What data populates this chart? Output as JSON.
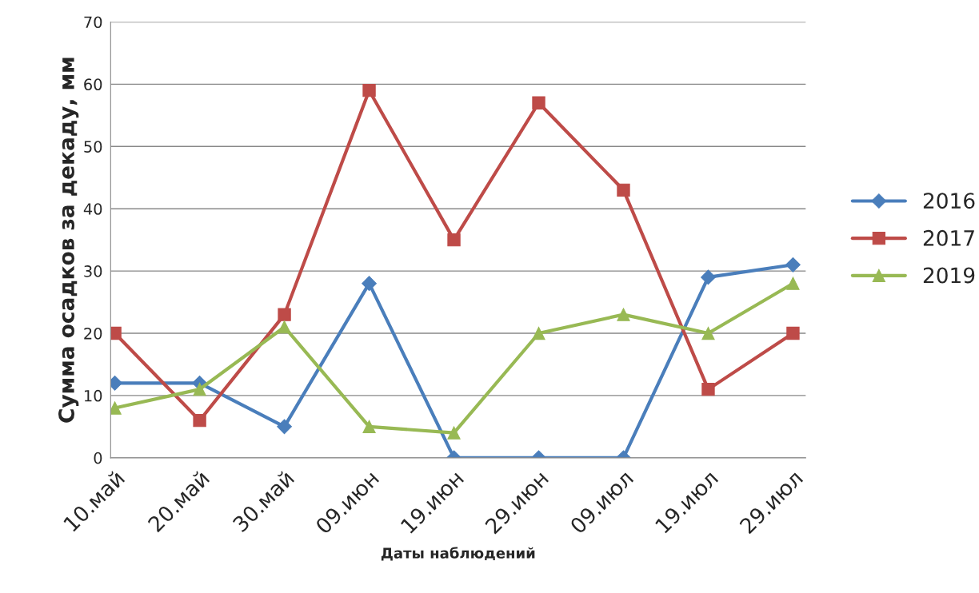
{
  "chart_data": {
    "type": "line",
    "xlabel": "Даты наблюдений",
    "ylabel": "Сумма осадков за декаду, мм",
    "categories": [
      "10.май",
      "20.май",
      "30.май",
      "09.июн",
      "19.июн",
      "29.июн",
      "09.июл",
      "19.июл",
      "29.июл"
    ],
    "series": [
      {
        "name": "2016",
        "color": "#4a7ebb",
        "marker": "diamond",
        "values": [
          12,
          12,
          5,
          28,
          0,
          0,
          0,
          29,
          31
        ]
      },
      {
        "name": "2017",
        "color": "#be4b48",
        "marker": "square",
        "values": [
          20,
          6,
          23,
          59,
          35,
          57,
          43,
          11,
          20
        ]
      },
      {
        "name": "2019",
        "color": "#98b954",
        "marker": "triangle",
        "values": [
          8,
          11,
          21,
          5,
          4,
          20,
          23,
          20,
          28
        ]
      }
    ],
    "ylim": [
      0,
      70
    ],
    "yticks": [
      0,
      10,
      20,
      30,
      40,
      50,
      60,
      70
    ],
    "grid": "y",
    "legend": "right",
    "line_style": "solid"
  }
}
